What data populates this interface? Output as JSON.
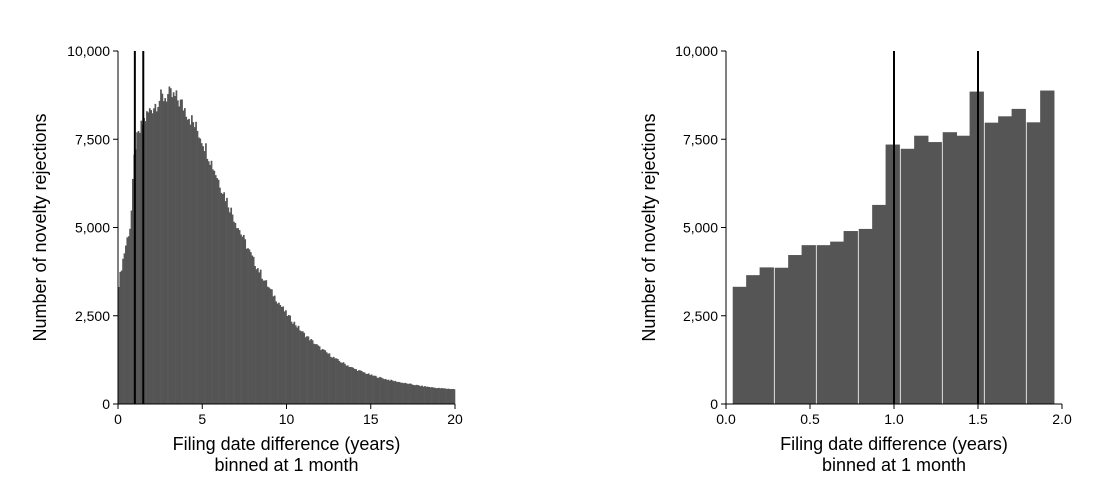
{
  "chart_data": [
    {
      "type": "bar",
      "xlabel": "Filing date difference (years)",
      "xlabel_line2": "binned at 1 month",
      "ylabel": "Number of novelty rejections",
      "xlim": [
        0,
        20
      ],
      "ylim": [
        0,
        10000
      ],
      "xticks": [
        0,
        5,
        10,
        15,
        20
      ],
      "xtick_labels": [
        "0",
        "5",
        "10",
        "15",
        "20"
      ],
      "yticks": [
        0,
        2500,
        5000,
        7500,
        10000
      ],
      "ytick_labels": [
        "0",
        "2,500",
        "5,000",
        "7,500",
        "10,000"
      ],
      "bin_width_years": 0.0833333333,
      "vlines": [
        1,
        1.5
      ],
      "grid": false,
      "bar_color": "#555555",
      "key_points": [
        [
          0,
          3300
        ],
        [
          0.25,
          4000
        ],
        [
          0.5,
          4600
        ],
        [
          0.75,
          5100
        ],
        [
          1,
          7300
        ],
        [
          1.5,
          8000
        ],
        [
          2,
          8400
        ],
        [
          2.5,
          8650
        ],
        [
          3,
          8750
        ],
        [
          3.5,
          8650
        ],
        [
          4,
          8350
        ],
        [
          5,
          7500
        ],
        [
          6,
          6300
        ],
        [
          7,
          5150
        ],
        [
          8,
          4100
        ],
        [
          9,
          3250
        ],
        [
          10,
          2550
        ],
        [
          11,
          2000
        ],
        [
          12,
          1580
        ],
        [
          13,
          1250
        ],
        [
          14,
          1000
        ],
        [
          15,
          820
        ],
        [
          16,
          690
        ],
        [
          17,
          590
        ],
        [
          18,
          510
        ],
        [
          19,
          450
        ],
        [
          20,
          420
        ]
      ]
    },
    {
      "type": "bar",
      "xlabel": "Filing date difference (years)",
      "xlabel_line2": "binned at 1 month",
      "ylabel": "Number of novelty rejections",
      "xlim": [
        0,
        2
      ],
      "ylim": [
        0,
        10000
      ],
      "xticks": [
        0,
        0.5,
        1,
        1.5,
        2
      ],
      "xtick_labels": [
        "0.0",
        "0.5",
        "1.0",
        "1.5",
        "2.0"
      ],
      "yticks": [
        0,
        2500,
        5000,
        7500,
        10000
      ],
      "ytick_labels": [
        "0",
        "2,500",
        "5,000",
        "7,500",
        "10,000"
      ],
      "bin_width_years": 0.0833333333,
      "bin_starts": [
        0.04,
        0.12,
        0.2,
        0.29,
        0.37,
        0.45,
        0.54,
        0.62,
        0.7,
        0.79,
        0.87,
        0.95,
        1.04,
        1.12,
        1.2,
        1.29,
        1.37,
        1.45,
        1.54,
        1.62,
        1.7,
        1.79,
        1.87
      ],
      "values": [
        3320,
        3650,
        3870,
        3860,
        4220,
        4500,
        4500,
        4600,
        4900,
        4960,
        5640,
        7350,
        7230,
        7600,
        7420,
        7700,
        7600,
        8850,
        7970,
        8150,
        8360,
        7980,
        8880
      ],
      "vlines": [
        1,
        1.5
      ],
      "grid": false,
      "bar_color": "#555555"
    }
  ]
}
